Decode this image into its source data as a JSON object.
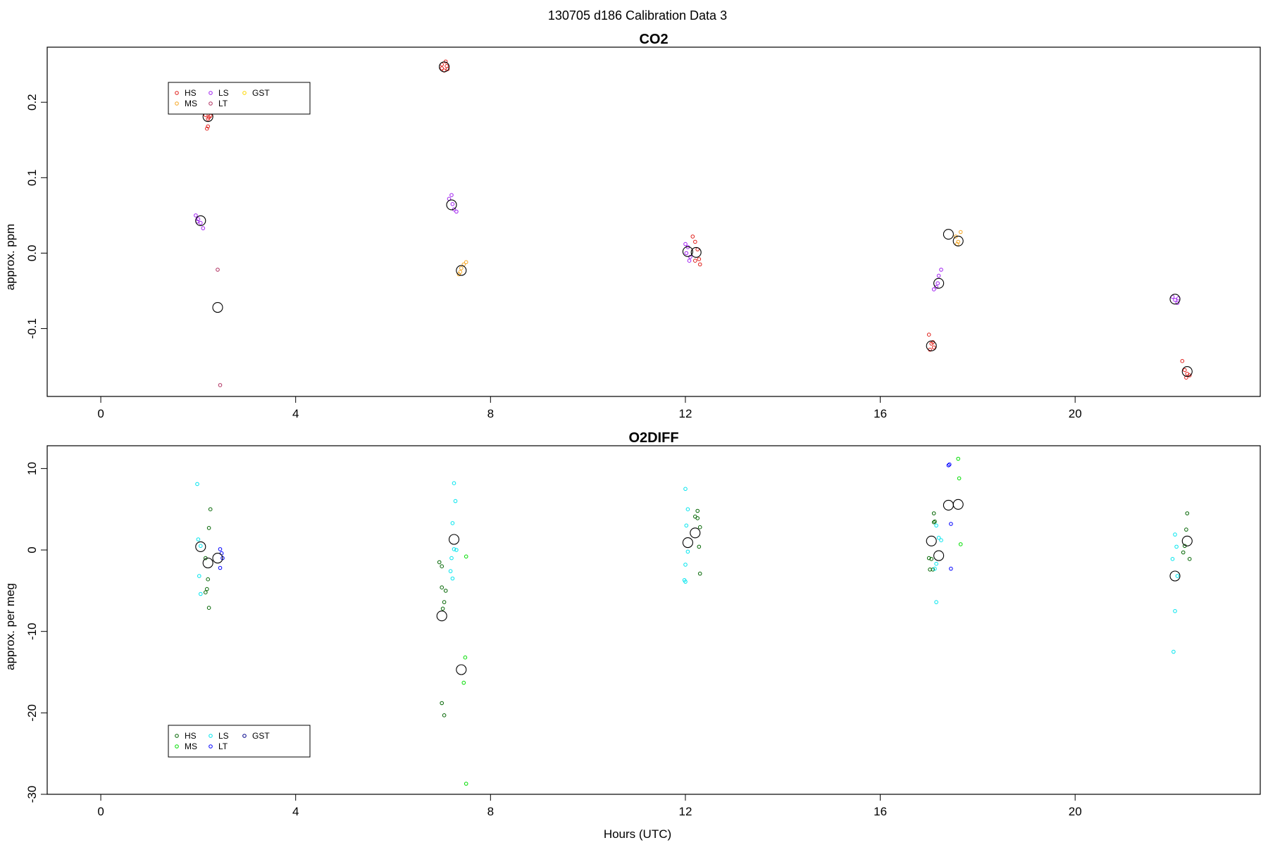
{
  "figure": {
    "title": "130705   d186   Calibration Data 3",
    "xlabel": "Hours (UTC)"
  },
  "chart_data": [
    {
      "type": "scatter",
      "title": "CO2",
      "ylabel": "approx. ppm",
      "xlabel": "",
      "xlim": [
        -1.1,
        23.8
      ],
      "ylim": [
        -0.19,
        0.273
      ],
      "xticks": [
        0,
        4,
        8,
        12,
        16,
        20
      ],
      "yticks": [
        -0.1,
        0.0,
        0.1,
        0.2
      ],
      "ytick_labels": [
        "-0.1",
        "0.0",
        "0.1",
        "0.2"
      ],
      "legend": {
        "position": "top-left",
        "items": [
          {
            "label": "HS",
            "color": "#e0201b"
          },
          {
            "label": "MS",
            "color": "#f5a623"
          },
          {
            "label": "LS",
            "color": "#a020f0"
          },
          {
            "label": "LT",
            "color": "#b03060"
          },
          {
            "label": "GST",
            "color": "#ffd700"
          }
        ]
      },
      "series": [
        {
          "name": "HS",
          "color": "#e0201b",
          "points": [
            [
              2.15,
              0.183
            ],
            [
              2.2,
              0.178
            ],
            [
              2.25,
              0.182
            ],
            [
              2.2,
              0.168
            ],
            [
              2.18,
              0.165
            ],
            [
              2.22,
              0.18
            ],
            [
              7.0,
              0.245
            ],
            [
              7.05,
              0.242
            ],
            [
              7.1,
              0.248
            ],
            [
              7.0,
              0.25
            ],
            [
              7.08,
              0.254
            ],
            [
              7.12,
              0.244
            ],
            [
              12.15,
              0.022
            ],
            [
              12.2,
              0.015
            ],
            [
              12.25,
              0.005
            ],
            [
              12.2,
              -0.01
            ],
            [
              12.3,
              -0.015
            ],
            [
              12.28,
              -0.008
            ],
            [
              17.0,
              -0.108
            ],
            [
              17.05,
              -0.12
            ],
            [
              17.1,
              -0.125
            ],
            [
              17.02,
              -0.128
            ],
            [
              17.08,
              -0.118
            ],
            [
              22.2,
              -0.143
            ],
            [
              22.25,
              -0.155
            ],
            [
              22.3,
              -0.16
            ],
            [
              22.28,
              -0.165
            ],
            [
              22.35,
              -0.162
            ]
          ]
        },
        {
          "name": "MS",
          "color": "#f5a623",
          "points": [
            [
              7.35,
              -0.028
            ],
            [
              7.4,
              -0.02
            ],
            [
              7.45,
              -0.015
            ],
            [
              7.5,
              -0.012
            ],
            [
              7.38,
              -0.025
            ],
            [
              17.55,
              0.022
            ],
            [
              17.6,
              0.015
            ],
            [
              17.65,
              0.028
            ],
            [
              17.58,
              0.012
            ]
          ]
        },
        {
          "name": "LS",
          "color": "#a020f0",
          "points": [
            [
              1.95,
              0.05
            ],
            [
              2.0,
              0.045
            ],
            [
              2.05,
              0.04
            ],
            [
              2.1,
              0.033
            ],
            [
              1.98,
              0.042
            ],
            [
              7.15,
              0.072
            ],
            [
              7.2,
              0.077
            ],
            [
              7.25,
              0.058
            ],
            [
              7.3,
              0.055
            ],
            [
              7.22,
              0.065
            ],
            [
              12.0,
              0.012
            ],
            [
              12.05,
              0.008
            ],
            [
              12.1,
              -0.005
            ],
            [
              12.08,
              -0.01
            ],
            [
              12.02,
              0.0
            ],
            [
              17.1,
              -0.048
            ],
            [
              17.15,
              -0.045
            ],
            [
              17.2,
              -0.03
            ],
            [
              17.25,
              -0.022
            ],
            [
              17.18,
              -0.04
            ],
            [
              22.0,
              -0.058
            ],
            [
              22.05,
              -0.062
            ],
            [
              22.1,
              -0.066
            ],
            [
              22.12,
              -0.06
            ]
          ]
        },
        {
          "name": "LT",
          "color": "#b03060",
          "points": [
            [
              2.4,
              -0.022
            ],
            [
              2.45,
              -0.175
            ]
          ]
        },
        {
          "name": "GST",
          "color": "#ffd700",
          "points": []
        },
        {
          "name": "",
          "color": "#000000",
          "marker": "large",
          "points": [
            [
              2.2,
              0.181
            ],
            [
              2.05,
              0.043
            ],
            [
              2.4,
              -0.072
            ],
            [
              7.05,
              0.247
            ],
            [
              7.2,
              0.064
            ],
            [
              7.4,
              -0.023
            ],
            [
              12.05,
              0.002
            ],
            [
              12.22,
              0.001
            ],
            [
              17.05,
              -0.123
            ],
            [
              17.2,
              -0.04
            ],
            [
              17.4,
              0.025
            ],
            [
              17.6,
              0.016
            ],
            [
              22.05,
              -0.061
            ],
            [
              22.3,
              -0.157
            ]
          ]
        }
      ]
    },
    {
      "type": "scatter",
      "title": "O2DIFF",
      "ylabel": "approx. per meg",
      "xlabel": "Hours (UTC)",
      "xlim": [
        -1.1,
        23.8
      ],
      "ylim": [
        -30,
        12.8
      ],
      "xticks": [
        0,
        4,
        8,
        12,
        16,
        20
      ],
      "yticks": [
        -30,
        -20,
        -10,
        0,
        10
      ],
      "ytick_labels": [
        "-30",
        "-20",
        "-10",
        "0",
        "10"
      ],
      "legend": {
        "position": "bottom-left",
        "items": [
          {
            "label": "HS",
            "color": "#006400"
          },
          {
            "label": "MS",
            "color": "#00dd00"
          },
          {
            "label": "LS",
            "color": "#00e5ee"
          },
          {
            "label": "LT",
            "color": "#0000ff"
          },
          {
            "label": "GST",
            "color": "#00008b"
          }
        ]
      },
      "series": [
        {
          "name": "HS",
          "color": "#006400",
          "points": [
            [
              2.25,
              5.0
            ],
            [
              2.22,
              2.7
            ],
            [
              2.15,
              -1.0
            ],
            [
              2.2,
              -3.6
            ],
            [
              2.18,
              -4.8
            ],
            [
              2.15,
              -5.2
            ],
            [
              2.22,
              -7.1
            ],
            [
              6.95,
              -1.5
            ],
            [
              7.0,
              -2.0
            ],
            [
              7.0,
              -4.6
            ],
            [
              7.08,
              -5.0
            ],
            [
              7.05,
              -6.4
            ],
            [
              7.02,
              -7.2
            ],
            [
              7.0,
              -18.8
            ],
            [
              7.05,
              -20.3
            ],
            [
              12.25,
              4.8
            ],
            [
              12.2,
              4.1
            ],
            [
              12.25,
              3.9
            ],
            [
              12.3,
              2.8
            ],
            [
              12.28,
              0.4
            ],
            [
              12.3,
              -2.9
            ],
            [
              17.0,
              -1.0
            ],
            [
              17.05,
              -1.1
            ],
            [
              17.02,
              -2.4
            ],
            [
              17.08,
              -2.4
            ],
            [
              17.1,
              3.4
            ],
            [
              17.12,
              3.5
            ],
            [
              17.1,
              4.5
            ],
            [
              22.3,
              4.5
            ],
            [
              22.28,
              2.5
            ],
            [
              22.25,
              0.5
            ],
            [
              22.22,
              -0.3
            ],
            [
              22.35,
              -1.1
            ]
          ]
        },
        {
          "name": "MS",
          "color": "#00dd00",
          "points": [
            [
              7.5,
              -0.8
            ],
            [
              7.48,
              -13.2
            ],
            [
              7.45,
              -16.3
            ],
            [
              7.5,
              -28.7
            ],
            [
              17.6,
              11.2
            ],
            [
              17.62,
              8.8
            ],
            [
              17.65,
              0.7
            ]
          ]
        },
        {
          "name": "LS",
          "color": "#00e5ee",
          "points": [
            [
              1.98,
              8.1
            ],
            [
              2.0,
              1.3
            ],
            [
              2.05,
              0.5
            ],
            [
              2.02,
              -3.2
            ],
            [
              2.05,
              -5.4
            ],
            [
              7.25,
              8.2
            ],
            [
              7.28,
              6.0
            ],
            [
              7.22,
              3.3
            ],
            [
              7.25,
              0.1
            ],
            [
              7.3,
              0.0
            ],
            [
              7.2,
              -1.0
            ],
            [
              7.18,
              -2.6
            ],
            [
              7.22,
              -3.5
            ],
            [
              12.0,
              7.5
            ],
            [
              12.05,
              5.0
            ],
            [
              12.02,
              3.0
            ],
            [
              12.05,
              -0.2
            ],
            [
              12.0,
              -1.8
            ],
            [
              11.98,
              -3.7
            ],
            [
              12.0,
              -3.9
            ],
            [
              17.15,
              3.0
            ],
            [
              17.2,
              1.5
            ],
            [
              17.25,
              1.2
            ],
            [
              17.15,
              -1.7
            ],
            [
              17.12,
              -2.3
            ],
            [
              17.15,
              -6.4
            ],
            [
              22.05,
              1.9
            ],
            [
              22.08,
              0.4
            ],
            [
              22.0,
              -1.1
            ],
            [
              22.1,
              -3.2
            ],
            [
              22.05,
              -7.5
            ],
            [
              22.02,
              -12.5
            ]
          ]
        },
        {
          "name": "LT",
          "color": "#0000ff",
          "points": [
            [
              2.45,
              0.1
            ],
            [
              2.48,
              -0.4
            ],
            [
              2.5,
              -1.0
            ],
            [
              2.45,
              -2.2
            ],
            [
              17.4,
              10.4
            ],
            [
              17.42,
              10.5
            ],
            [
              17.45,
              3.2
            ],
            [
              17.45,
              -2.3
            ]
          ]
        },
        {
          "name": "GST",
          "color": "#00008b",
          "points": []
        },
        {
          "name": "",
          "color": "#000000",
          "marker": "large",
          "points": [
            [
              2.05,
              0.4
            ],
            [
              2.2,
              -1.6
            ],
            [
              2.4,
              -1.0
            ],
            [
              7.0,
              -8.1
            ],
            [
              7.25,
              1.3
            ],
            [
              7.4,
              -14.7
            ],
            [
              12.05,
              0.9
            ],
            [
              12.2,
              2.1
            ],
            [
              17.05,
              1.1
            ],
            [
              17.2,
              -0.7
            ],
            [
              17.4,
              5.5
            ],
            [
              17.6,
              5.6
            ],
            [
              22.05,
              -3.2
            ],
            [
              22.3,
              1.1
            ]
          ]
        }
      ]
    }
  ]
}
